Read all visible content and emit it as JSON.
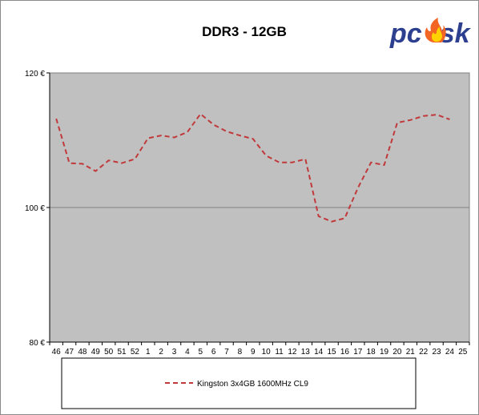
{
  "colors": {
    "plot_background": "#c0c0c0",
    "series_line": "#c0393b",
    "gridline": "#7f7f7f",
    "logo_blue": "#2d3f8f",
    "logo_flame_outer": "#f26522",
    "logo_flame_inner": "#ffd200"
  },
  "logo": {
    "text_before": "pc",
    "text_after": "sk"
  },
  "chart_data": {
    "type": "line",
    "title": "DDR3 - 12GB",
    "xlabel": "",
    "ylabel": "",
    "categories": [
      "46",
      "47",
      "48",
      "49",
      "50",
      "51",
      "52",
      "1",
      "2",
      "3",
      "4",
      "5",
      "6",
      "7",
      "8",
      "9",
      "10",
      "11",
      "12",
      "13",
      "14",
      "15",
      "16",
      "17",
      "18",
      "19",
      "20",
      "21",
      "22",
      "23",
      "24",
      "25"
    ],
    "ylim": [
      80,
      120
    ],
    "yticks": [
      80,
      100,
      120
    ],
    "ytick_labels": [
      "80 €",
      "100 €",
      "120 €"
    ],
    "grid": "horizontal at 100 €",
    "legend_position": "bottom",
    "series": [
      {
        "name": "Kingston 3x4GB 1600MHz CL9",
        "style": "dashed",
        "values": [
          113.2,
          106.6,
          106.5,
          105.4,
          107.0,
          106.6,
          107.2,
          110.3,
          110.7,
          110.4,
          111.2,
          113.9,
          112.3,
          111.3,
          110.7,
          110.2,
          107.7,
          106.7,
          106.7,
          107.2,
          98.7,
          97.9,
          98.4,
          102.9,
          106.7,
          106.3,
          112.6,
          113.0,
          113.6,
          113.8,
          113.1,
          null
        ]
      }
    ]
  }
}
